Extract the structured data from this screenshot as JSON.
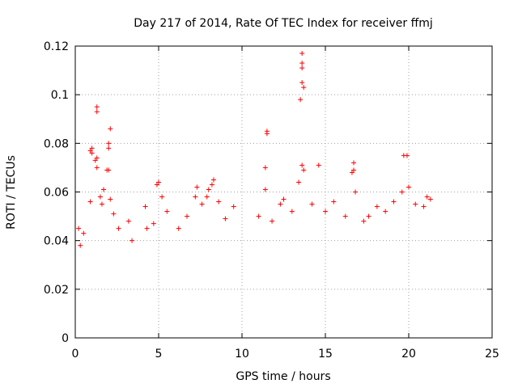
{
  "chart_data": {
    "type": "scatter",
    "title": "Day 217 of 2014, Rate Of TEC Index for receiver ffmj",
    "xlabel": "GPS time / hours",
    "ylabel": "ROTI / TECUs",
    "xlim": [
      0,
      25
    ],
    "ylim": [
      0,
      0.12
    ],
    "xticks": [
      0,
      5,
      10,
      15,
      20,
      25
    ],
    "xtick_labels": [
      "0",
      "5",
      "10",
      "15",
      "20",
      "25"
    ],
    "yticks": [
      0,
      0.02,
      0.04,
      0.06,
      0.08,
      0.1,
      0.12
    ],
    "ytick_labels": [
      "0",
      "0.02",
      "0.04",
      "0.06",
      "0.08",
      "0.1",
      "0.12"
    ],
    "grid": true,
    "marker": "+",
    "color": "#ff0000",
    "series": [
      {
        "name": "ROTI",
        "points": [
          [
            0.2,
            0.045
          ],
          [
            0.3,
            0.038
          ],
          [
            0.5,
            0.043
          ],
          [
            0.9,
            0.077
          ],
          [
            1.0,
            0.078
          ],
          [
            1.0,
            0.076
          ],
          [
            0.9,
            0.056
          ],
          [
            1.2,
            0.073
          ],
          [
            1.3,
            0.074
          ],
          [
            1.3,
            0.07
          ],
          [
            1.3,
            0.093
          ],
          [
            1.3,
            0.095
          ],
          [
            1.5,
            0.058
          ],
          [
            1.6,
            0.055
          ],
          [
            1.7,
            0.061
          ],
          [
            1.9,
            0.069
          ],
          [
            2.0,
            0.08
          ],
          [
            2.0,
            0.078
          ],
          [
            2.0,
            0.069
          ],
          [
            2.1,
            0.086
          ],
          [
            2.1,
            0.057
          ],
          [
            2.3,
            0.051
          ],
          [
            2.6,
            0.045
          ],
          [
            3.2,
            0.048
          ],
          [
            3.4,
            0.04
          ],
          [
            4.2,
            0.054
          ],
          [
            4.3,
            0.045
          ],
          [
            4.7,
            0.047
          ],
          [
            4.9,
            0.063
          ],
          [
            5.0,
            0.064
          ],
          [
            5.2,
            0.058
          ],
          [
            5.5,
            0.052
          ],
          [
            6.2,
            0.045
          ],
          [
            6.7,
            0.05
          ],
          [
            7.2,
            0.058
          ],
          [
            7.3,
            0.062
          ],
          [
            7.6,
            0.055
          ],
          [
            7.9,
            0.058
          ],
          [
            8.0,
            0.061
          ],
          [
            8.2,
            0.063
          ],
          [
            8.3,
            0.065
          ],
          [
            8.6,
            0.056
          ],
          [
            9.0,
            0.049
          ],
          [
            9.5,
            0.054
          ],
          [
            11.0,
            0.05
          ],
          [
            11.4,
            0.07
          ],
          [
            11.5,
            0.084
          ],
          [
            11.5,
            0.085
          ],
          [
            11.4,
            0.061
          ],
          [
            11.8,
            0.048
          ],
          [
            12.3,
            0.055
          ],
          [
            12.5,
            0.057
          ],
          [
            13.0,
            0.052
          ],
          [
            13.4,
            0.064
          ],
          [
            13.6,
            0.117
          ],
          [
            13.6,
            0.113
          ],
          [
            13.6,
            0.111
          ],
          [
            13.6,
            0.105
          ],
          [
            13.7,
            0.103
          ],
          [
            13.5,
            0.098
          ],
          [
            13.6,
            0.071
          ],
          [
            13.7,
            0.069
          ],
          [
            14.2,
            0.055
          ],
          [
            14.6,
            0.071
          ],
          [
            15.0,
            0.052
          ],
          [
            15.5,
            0.056
          ],
          [
            16.2,
            0.05
          ],
          [
            16.7,
            0.072
          ],
          [
            16.7,
            0.069
          ],
          [
            16.6,
            0.068
          ],
          [
            16.8,
            0.06
          ],
          [
            17.3,
            0.048
          ],
          [
            17.6,
            0.05
          ],
          [
            18.1,
            0.054
          ],
          [
            18.6,
            0.052
          ],
          [
            19.1,
            0.056
          ],
          [
            19.6,
            0.06
          ],
          [
            19.7,
            0.075
          ],
          [
            19.9,
            0.075
          ],
          [
            20.0,
            0.062
          ],
          [
            20.4,
            0.055
          ],
          [
            20.9,
            0.054
          ],
          [
            21.1,
            0.058
          ],
          [
            21.3,
            0.057
          ]
        ]
      }
    ]
  }
}
